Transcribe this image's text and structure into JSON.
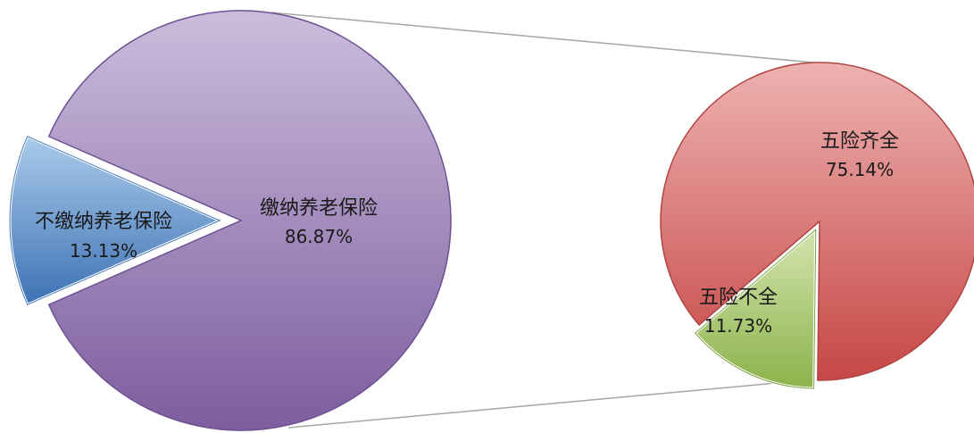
{
  "chart_data": {
    "type": "pie",
    "subtype": "pie-of-pie",
    "primary": {
      "slices": [
        {
          "label": "缴纳养老保险",
          "value": 86.87,
          "value_label": "86.87%",
          "color": "#8E75AE",
          "exploded": false
        },
        {
          "label": "不缴纳养老保险",
          "value": 13.13,
          "value_label": "13.13%",
          "color": "#5B8FC7",
          "exploded": true
        }
      ]
    },
    "secondary": {
      "slices": [
        {
          "label": "五险齐全",
          "value": 75.14,
          "value_label": "75.14%",
          "color": "#D46A69",
          "exploded": false
        },
        {
          "label": "五险不全",
          "value": 11.73,
          "value_label": "11.73%",
          "color": "#A8C870",
          "exploded": true
        }
      ]
    },
    "connector_lines": true,
    "legend": "none"
  }
}
